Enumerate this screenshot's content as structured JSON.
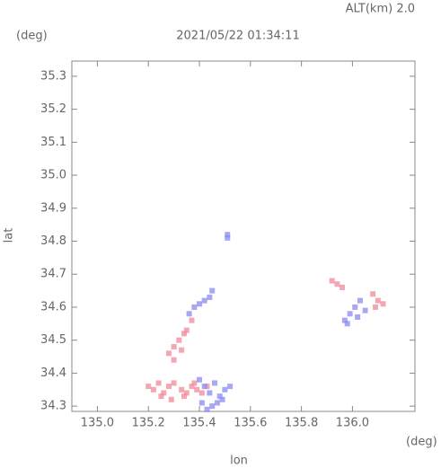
{
  "chart_data": {
    "type": "scatter",
    "title": "2021/05/22 01:34:11",
    "subtitle": "ALT(km) 2.0",
    "x_label": "lon",
    "y_label": "lat",
    "x_unit": "(deg)",
    "y_unit": "(deg)",
    "xlim": [
      134.9,
      136.245
    ],
    "ylim": [
      34.284,
      35.346
    ],
    "xticks": [
      {
        "value": 135.0,
        "label": "135.0"
      },
      135.2,
      135.4,
      135.6,
      135.8,
      {
        "value": 136.0,
        "label": "136.0"
      }
    ],
    "yticks": [
      34.3,
      34.4,
      34.5,
      34.6,
      34.7,
      34.8,
      34.9,
      {
        "value": 35.0,
        "label": "35.0"
      },
      35.1,
      35.2,
      35.3
    ],
    "series": [
      {
        "color": "#f08a9a",
        "x": [
          135.2,
          135.22,
          135.24,
          135.26,
          135.28,
          135.3,
          135.33,
          135.35,
          135.37,
          135.39,
          135.41,
          135.43,
          135.25,
          135.29,
          135.34,
          135.38,
          135.28,
          135.3,
          135.32,
          135.34,
          135.3,
          135.33,
          135.35,
          135.37,
          135.92,
          135.94,
          135.96,
          136.08,
          136.1,
          136.12,
          136.09
        ],
        "values": [
          34.36,
          34.35,
          34.37,
          34.34,
          34.36,
          34.37,
          34.35,
          34.34,
          34.36,
          34.35,
          34.34,
          34.36,
          34.33,
          34.32,
          34.33,
          34.37,
          34.46,
          34.48,
          34.5,
          34.52,
          34.44,
          34.47,
          34.53,
          34.56,
          34.68,
          34.67,
          34.66,
          34.64,
          34.62,
          34.61,
          34.6
        ]
      },
      {
        "color": "#8a8af0",
        "x": [
          135.4,
          135.42,
          135.44,
          135.46,
          135.48,
          135.5,
          135.52,
          135.41,
          135.45,
          135.49,
          135.43,
          135.47,
          135.36,
          135.38,
          135.4,
          135.42,
          135.44,
          135.45,
          135.51,
          135.51,
          135.97,
          135.99,
          136.01,
          136.03,
          136.05,
          135.98,
          136.02
        ],
        "values": [
          34.38,
          34.36,
          34.34,
          34.37,
          34.33,
          34.35,
          34.36,
          34.31,
          34.3,
          34.32,
          34.29,
          34.31,
          34.58,
          34.6,
          34.61,
          34.62,
          34.63,
          34.65,
          34.81,
          34.82,
          34.56,
          34.58,
          34.6,
          34.62,
          34.59,
          34.55,
          34.57
        ]
      }
    ]
  }
}
